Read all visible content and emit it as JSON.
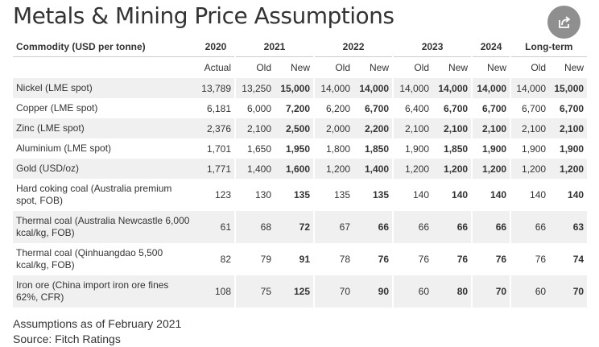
{
  "title": "Metals & Mining Price Assumptions",
  "share_icon": "share-icon",
  "table": {
    "commodity_header": "Commodity (USD per tonne)",
    "year_groups": [
      "2020",
      "2021",
      "2022",
      "2023",
      "2024",
      "Long-term"
    ],
    "subheaders": [
      "Actual",
      "Old",
      "New",
      "Old",
      "New",
      "Old",
      "New",
      "New",
      "Old",
      "New"
    ],
    "rows": [
      {
        "label": "Nickel (LME spot)",
        "values": [
          "13,789",
          "13,250",
          "15,000",
          "14,000",
          "14,000",
          "14,000",
          "14,000",
          "14,000",
          "14,000",
          "15,000"
        ]
      },
      {
        "label": "Copper (LME spot)",
        "values": [
          "6,181",
          "6,000",
          "7,200",
          "6,200",
          "6,700",
          "6,400",
          "6,700",
          "6,700",
          "6,700",
          "6,700"
        ]
      },
      {
        "label": "Zinc (LME spot)",
        "values": [
          "2,376",
          "2,100",
          "2,500",
          "2,000",
          "2,200",
          "2,100",
          "2,100",
          "2,100",
          "2,100",
          "2,100"
        ]
      },
      {
        "label": "Aluminium (LME spot)",
        "values": [
          "1,701",
          "1,650",
          "1,950",
          "1,800",
          "1,850",
          "1,900",
          "1,850",
          "1,900",
          "1,900",
          "1,900"
        ]
      },
      {
        "label": "Gold (USD/oz)",
        "values": [
          "1,771",
          "1,400",
          "1,600",
          "1,200",
          "1,400",
          "1,200",
          "1,200",
          "1,200",
          "1,200",
          "1,200"
        ]
      },
      {
        "label": "Hard coking coal (Australia premium spot, FOB)",
        "values": [
          "123",
          "130",
          "135",
          "135",
          "135",
          "140",
          "140",
          "140",
          "140",
          "140"
        ]
      },
      {
        "label": "Thermal coal (Australia Newcastle 6,000 kcal/kg, FOB)",
        "values": [
          "61",
          "68",
          "72",
          "67",
          "66",
          "66",
          "66",
          "66",
          "66",
          "63"
        ]
      },
      {
        "label": "Thermal coal (Qinhuangdao 5,500 kcal/kg, FOB)",
        "values": [
          "82",
          "79",
          "91",
          "78",
          "76",
          "76",
          "76",
          "76",
          "76",
          "74"
        ]
      },
      {
        "label": "Iron ore (China import iron ore fines 62%, CFR)",
        "values": [
          "108",
          "75",
          "125",
          "70",
          "90",
          "60",
          "80",
          "70",
          "60",
          "70"
        ]
      }
    ]
  },
  "notes": {
    "line1": "Assumptions as of February 2021",
    "line2": "Source: Fitch Ratings"
  }
}
